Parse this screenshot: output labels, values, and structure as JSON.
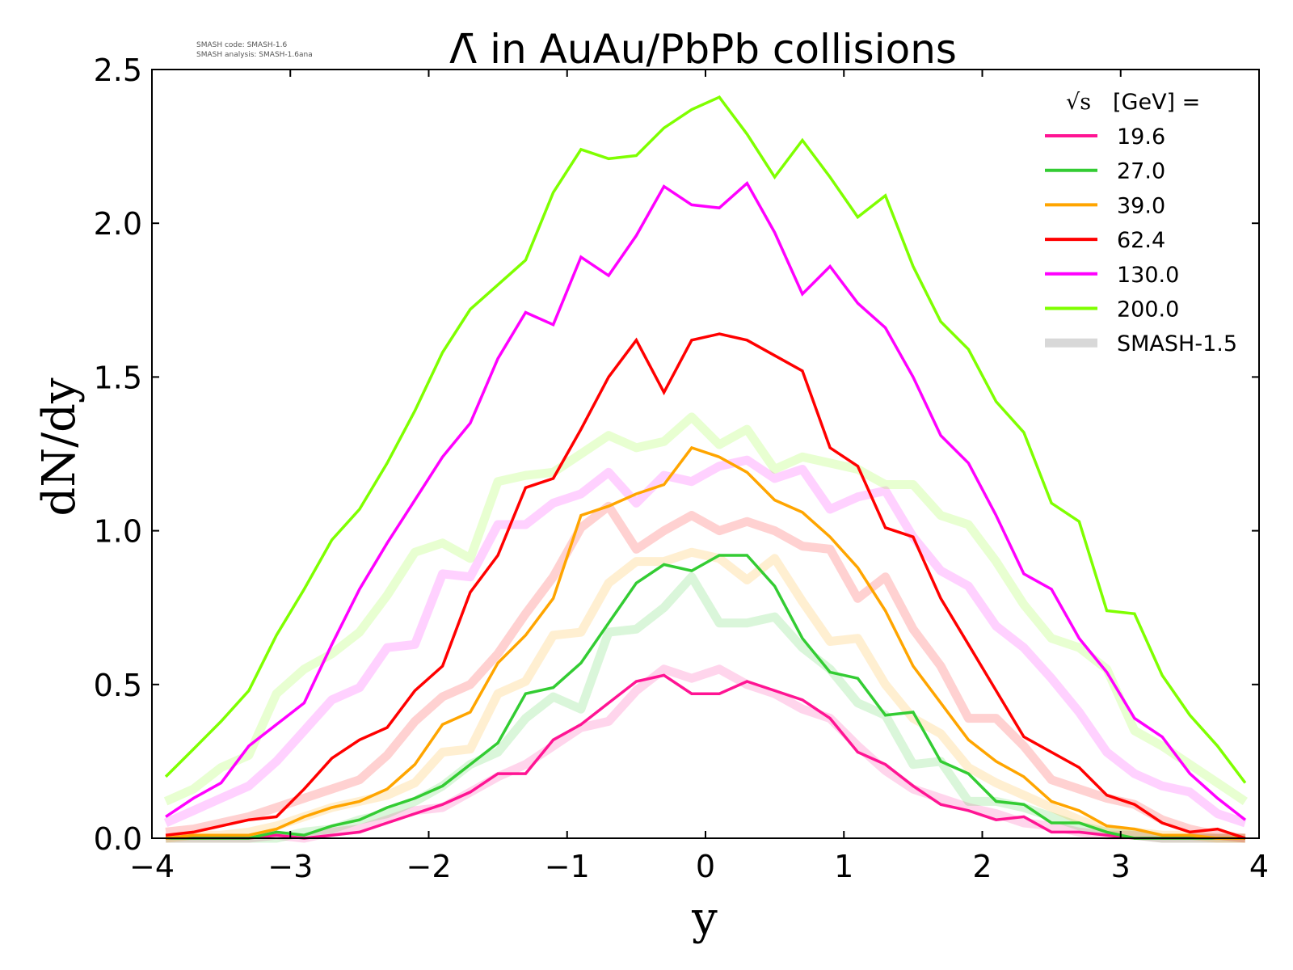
{
  "header": {
    "version_lines": [
      "SMASH code:      SMASH-1.6",
      "SMASH analysis: SMASH-1.6ana"
    ]
  },
  "chart_data": {
    "type": "line",
    "title": "Λ̄ in AuAu/PbPb collisions",
    "xlabel": "y",
    "ylabel": "dN/dy",
    "xlim": [
      -4,
      4
    ],
    "ylim": [
      0,
      2.5
    ],
    "xticks": [
      -4,
      -3,
      -2,
      -1,
      0,
      1,
      2,
      3,
      4
    ],
    "xtick_labels": [
      "−4",
      "−3",
      "−2",
      "−1",
      "0",
      "1",
      "2",
      "3",
      "4"
    ],
    "yticks": [
      0,
      0.5,
      1.0,
      1.5,
      2.0,
      2.5
    ],
    "ytick_labels": [
      "0.0",
      "0.5",
      "1.0",
      "1.5",
      "2.0",
      "2.5"
    ],
    "grid": false,
    "legend": {
      "placement": "top-right",
      "title_sqrt": "√s",
      "title_rest": "[GeV] =",
      "reference_label": "SMASH-1.5",
      "reference_color": "#d8d8d8"
    },
    "x": [
      -3.9,
      -3.7,
      -3.5,
      -3.3,
      -3.1,
      -2.9,
      -2.7,
      -2.5,
      -2.3,
      -2.1,
      -1.9,
      -1.7,
      -1.5,
      -1.3,
      -1.1,
      -0.9,
      -0.7,
      -0.5,
      -0.3,
      -0.1,
      0.1,
      0.3,
      0.5,
      0.7,
      0.9,
      1.1,
      1.3,
      1.5,
      1.7,
      1.9,
      2.1,
      2.3,
      2.5,
      2.7,
      2.9,
      3.1,
      3.3,
      3.5,
      3.7,
      3.9
    ],
    "series": [
      {
        "name": "19.6",
        "color": "#ff1493",
        "values": [
          0.0,
          0.0,
          0.0,
          0.0,
          0.01,
          0.0,
          0.01,
          0.02,
          0.05,
          0.08,
          0.11,
          0.15,
          0.21,
          0.21,
          0.32,
          0.37,
          0.44,
          0.51,
          0.53,
          0.47,
          0.47,
          0.51,
          0.48,
          0.45,
          0.39,
          0.28,
          0.24,
          0.17,
          0.11,
          0.09,
          0.06,
          0.07,
          0.02,
          0.02,
          0.01,
          0.0,
          0.0,
          0.0,
          0.0,
          0.0
        ],
        "reference_values": [
          0.0,
          0.0,
          0.0,
          0.0,
          0.01,
          0.0,
          0.02,
          0.03,
          0.06,
          0.09,
          0.1,
          0.15,
          0.2,
          0.24,
          0.3,
          0.36,
          0.38,
          0.48,
          0.55,
          0.52,
          0.55,
          0.5,
          0.47,
          0.42,
          0.39,
          0.3,
          0.22,
          0.16,
          0.13,
          0.1,
          0.08,
          0.05,
          0.04,
          0.02,
          0.01,
          0.01,
          0.0,
          0.0,
          0.0,
          0.0
        ]
      },
      {
        "name": "27.0",
        "color": "#33cc33",
        "values": [
          0.0,
          0.0,
          0.0,
          0.0,
          0.02,
          0.01,
          0.04,
          0.06,
          0.1,
          0.13,
          0.17,
          0.24,
          0.31,
          0.47,
          0.49,
          0.57,
          0.7,
          0.83,
          0.89,
          0.87,
          0.92,
          0.92,
          0.82,
          0.65,
          0.54,
          0.52,
          0.4,
          0.41,
          0.25,
          0.21,
          0.12,
          0.11,
          0.05,
          0.05,
          0.02,
          0.0,
          0.0,
          0.0,
          0.0,
          0.0
        ],
        "reference_values": [
          0.0,
          0.0,
          0.0,
          0.0,
          0.0,
          0.02,
          0.03,
          0.06,
          0.08,
          0.12,
          0.17,
          0.24,
          0.28,
          0.39,
          0.46,
          0.42,
          0.67,
          0.68,
          0.75,
          0.85,
          0.7,
          0.7,
          0.72,
          0.62,
          0.55,
          0.44,
          0.4,
          0.24,
          0.25,
          0.12,
          0.12,
          0.1,
          0.07,
          0.04,
          0.02,
          0.01,
          0.0,
          0.0,
          0.0,
          0.0
        ]
      },
      {
        "name": "39.0",
        "color": "#ffa500",
        "values": [
          0.0,
          0.01,
          0.01,
          0.01,
          0.03,
          0.07,
          0.1,
          0.12,
          0.16,
          0.24,
          0.37,
          0.41,
          0.57,
          0.66,
          0.78,
          1.05,
          1.08,
          1.12,
          1.15,
          1.27,
          1.24,
          1.19,
          1.1,
          1.06,
          0.98,
          0.88,
          0.74,
          0.56,
          0.44,
          0.32,
          0.25,
          0.2,
          0.12,
          0.09,
          0.04,
          0.03,
          0.01,
          0.01,
          0.0,
          0.0
        ],
        "reference_values": [
          0.0,
          0.01,
          0.01,
          0.02,
          0.04,
          0.07,
          0.1,
          0.12,
          0.14,
          0.18,
          0.28,
          0.29,
          0.47,
          0.51,
          0.66,
          0.67,
          0.83,
          0.9,
          0.9,
          0.93,
          0.91,
          0.84,
          0.91,
          0.77,
          0.64,
          0.65,
          0.5,
          0.39,
          0.34,
          0.23,
          0.18,
          0.14,
          0.1,
          0.06,
          0.03,
          0.02,
          0.01,
          0.01,
          0.0,
          0.0
        ]
      },
      {
        "name": "62.4",
        "color": "#ff0000",
        "values": [
          0.01,
          0.02,
          0.04,
          0.06,
          0.07,
          0.16,
          0.26,
          0.32,
          0.36,
          0.48,
          0.56,
          0.8,
          0.92,
          1.14,
          1.17,
          1.33,
          1.5,
          1.62,
          1.45,
          1.62,
          1.64,
          1.62,
          1.57,
          1.52,
          1.27,
          1.21,
          1.01,
          0.98,
          0.78,
          0.63,
          0.48,
          0.33,
          0.28,
          0.23,
          0.14,
          0.11,
          0.05,
          0.02,
          0.03,
          0.0
        ],
        "reference_values": [
          0.02,
          0.03,
          0.05,
          0.07,
          0.1,
          0.13,
          0.16,
          0.19,
          0.27,
          0.38,
          0.46,
          0.5,
          0.6,
          0.73,
          0.85,
          1.01,
          1.08,
          0.94,
          1.0,
          1.05,
          1.0,
          1.03,
          1.0,
          0.95,
          0.94,
          0.78,
          0.85,
          0.68,
          0.56,
          0.39,
          0.39,
          0.3,
          0.19,
          0.16,
          0.13,
          0.11,
          0.06,
          0.03,
          0.01,
          0.0
        ]
      },
      {
        "name": "130.0",
        "color": "#ff00ff",
        "values": [
          0.07,
          0.13,
          0.18,
          0.3,
          0.37,
          0.44,
          0.63,
          0.81,
          0.96,
          1.1,
          1.24,
          1.35,
          1.56,
          1.71,
          1.67,
          1.89,
          1.83,
          1.96,
          2.12,
          2.06,
          2.05,
          2.13,
          1.97,
          1.77,
          1.86,
          1.74,
          1.66,
          1.5,
          1.31,
          1.22,
          1.05,
          0.86,
          0.81,
          0.65,
          0.54,
          0.39,
          0.33,
          0.21,
          0.13,
          0.06
        ],
        "reference_values": [
          0.05,
          0.09,
          0.13,
          0.17,
          0.25,
          0.35,
          0.45,
          0.49,
          0.62,
          0.63,
          0.86,
          0.85,
          1.02,
          1.02,
          1.09,
          1.12,
          1.19,
          1.09,
          1.18,
          1.16,
          1.21,
          1.23,
          1.17,
          1.2,
          1.07,
          1.11,
          1.13,
          0.98,
          0.87,
          0.82,
          0.69,
          0.62,
          0.52,
          0.41,
          0.28,
          0.21,
          0.17,
          0.15,
          0.08,
          0.05
        ]
      },
      {
        "name": "200.0",
        "color": "#7fff00",
        "values": [
          0.2,
          0.29,
          0.38,
          0.48,
          0.66,
          0.81,
          0.97,
          1.07,
          1.22,
          1.39,
          1.58,
          1.72,
          1.8,
          1.88,
          2.1,
          2.24,
          2.21,
          2.22,
          2.31,
          2.37,
          2.41,
          2.29,
          2.15,
          2.27,
          2.15,
          2.02,
          2.09,
          1.86,
          1.68,
          1.59,
          1.42,
          1.32,
          1.09,
          1.03,
          0.74,
          0.73,
          0.53,
          0.4,
          0.3,
          0.18
        ],
        "reference_values": [
          0.12,
          0.16,
          0.23,
          0.27,
          0.47,
          0.55,
          0.6,
          0.67,
          0.79,
          0.93,
          0.96,
          0.91,
          1.16,
          1.18,
          1.19,
          1.25,
          1.31,
          1.27,
          1.29,
          1.37,
          1.28,
          1.33,
          1.2,
          1.24,
          1.22,
          1.2,
          1.15,
          1.15,
          1.05,
          1.02,
          0.9,
          0.76,
          0.65,
          0.62,
          0.55,
          0.35,
          0.3,
          0.24,
          0.18,
          0.12
        ]
      }
    ]
  }
}
